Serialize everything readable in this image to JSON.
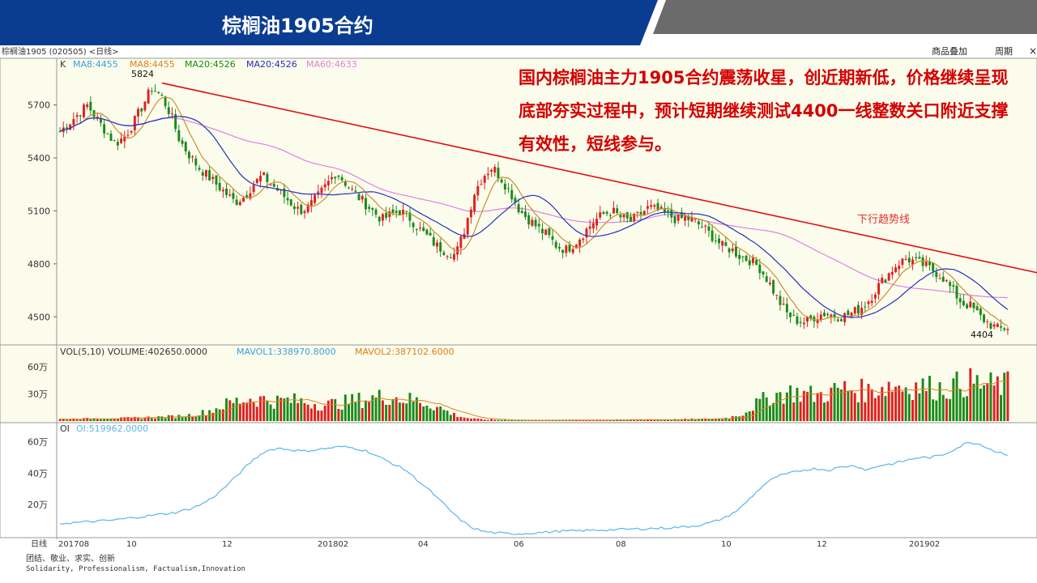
{
  "header": {
    "title": "棕榈油1905合约"
  },
  "toolbar": {
    "overlay_label": "商品叠加",
    "period_label": "周期",
    "close_label": "×"
  },
  "chart_info": {
    "instrument_label": "棕榈油1905 (020505) <日线>",
    "k_label": "K",
    "ma_labels": [
      "MA8:4455",
      "MA8:4455",
      "MA20:4526",
      "MA20:4526",
      "MA60:4633"
    ],
    "high_marker": "5824",
    "low_marker": "4404",
    "vol_label": "VOL(5,10) VOLUME:402650.0000",
    "mavol1_label": "MAVOL1:338970.8000",
    "mavol2_label": "MAVOL2:387102.6000",
    "oi_label": "OI",
    "oi_value_label": "OI:519962.0000",
    "period_axis_label": "日线"
  },
  "annotation": {
    "text": "国内棕榈油主力1905合约震荡收星，创近期新低，价格继续呈现底部夯实过程中，预计短期继续测试4400一线整数关口附近支撑有效性，短线参与。",
    "trend_label": "下行趋势线"
  },
  "footer": {
    "cn": "团结、敬业、求实、创新",
    "en": "Solidarity, Professionalism, Factualism,Innovation"
  },
  "colors": {
    "header_blue": "#0a3d91",
    "header_gray": "#6b6b6b",
    "bg_panel": "#fcfcec",
    "up": "#e02020",
    "down": "#1a8a1a",
    "ma_short": "#c89030",
    "ma_mid": "#2030c0",
    "ma_long": "#e080e0",
    "trend": "#e01010",
    "oi": "#5ab4f0"
  },
  "chart_data": {
    "type": "candlestick",
    "title": "棕榈油1905合约",
    "price_axis": {
      "ticks": [
        4500,
        4800,
        5100,
        5400,
        5700
      ],
      "ylim": [
        4350,
        5900
      ]
    },
    "volume_axis": {
      "ticks_labels": [
        "30万",
        "60万"
      ],
      "ticks": [
        300000,
        600000
      ],
      "ylim": [
        0,
        700000
      ]
    },
    "oi_axis": {
      "ticks_labels": [
        "20万",
        "40万",
        "60万"
      ],
      "ticks": [
        200000,
        400000,
        600000
      ],
      "ylim": [
        0,
        650000
      ]
    },
    "x_tick_labels": [
      "201708",
      "10",
      "12",
      "201802",
      "04",
      "06",
      "08",
      "10",
      "12",
      "201902"
    ],
    "close_path": [
      5550,
      5600,
      5650,
      5700,
      5620,
      5550,
      5480,
      5520,
      5600,
      5700,
      5800,
      5750,
      5650,
      5500,
      5420,
      5350,
      5300,
      5250,
      5200,
      5150,
      5180,
      5250,
      5300,
      5250,
      5200,
      5150,
      5100,
      5120,
      5180,
      5250,
      5320,
      5260,
      5200,
      5150,
      5100,
      5050,
      5080,
      5100,
      5060,
      5000,
      4950,
      4900,
      4870,
      4850,
      5000,
      5200,
      5300,
      5350,
      5280,
      5200,
      5100,
      5050,
      5000,
      4960,
      4900,
      4880,
      4920,
      4980,
      5040,
      5080,
      5100,
      5060,
      5040,
      5080,
      5120,
      5100,
      5080,
      5050,
      5060,
      5040,
      5000,
      4950,
      4900,
      4880,
      4840,
      4820,
      4780,
      4700,
      4600,
      4520,
      4480,
      4470,
      4500,
      4520,
      4510,
      4500,
      4520,
      4550,
      4600,
      4680,
      4740,
      4800,
      4830,
      4810,
      4790,
      4760,
      4720,
      4650,
      4580,
      4560,
      4500,
      4460,
      4430,
      4440
    ],
    "trend_line": {
      "start_value": 5824,
      "end_value": 4750
    },
    "volume_path": [
      20000,
      25000,
      25000,
      30000,
      30000,
      30000,
      35000,
      40000,
      45000,
      50000,
      60000,
      80000,
      120000,
      180000,
      220000,
      250000,
      240000,
      220000,
      230000,
      220000,
      200000,
      180000,
      200000,
      220000,
      240000,
      260000,
      280000,
      250000,
      230000,
      200000,
      150000,
      80000,
      40000,
      20000,
      15000,
      12000,
      10000,
      10000,
      10000,
      10000,
      10000,
      12000,
      12000,
      12000,
      12000,
      15000,
      15000,
      15000,
      15000,
      18000,
      20000,
      22000,
      25000,
      40000,
      80000,
      180000,
      260000,
      300000,
      320000,
      300000,
      280000,
      320000,
      360000,
      340000,
      330000,
      380000,
      400000,
      380000,
      390000,
      370000,
      360000,
      400000,
      430000,
      400000,
      390000,
      400000
    ],
    "oi_path": [
      80000,
      85000,
      90000,
      95000,
      100000,
      110000,
      120000,
      130000,
      140000,
      150000,
      170000,
      200000,
      250000,
      320000,
      400000,
      480000,
      540000,
      560000,
      550000,
      540000,
      550000,
      560000,
      570000,
      560000,
      540000,
      500000,
      460000,
      420000,
      350000,
      280000,
      200000,
      120000,
      60000,
      30000,
      20000,
      15000,
      15000,
      20000,
      25000,
      30000,
      32000,
      35000,
      38000,
      40000,
      42000,
      45000,
      48000,
      50000,
      55000,
      60000,
      70000,
      90000,
      120000,
      170000,
      250000,
      330000,
      380000,
      400000,
      420000,
      430000,
      420000,
      440000,
      450000,
      420000,
      450000,
      460000,
      480000,
      500000,
      500000,
      520000,
      560000,
      600000,
      580000,
      540000,
      520000
    ]
  }
}
